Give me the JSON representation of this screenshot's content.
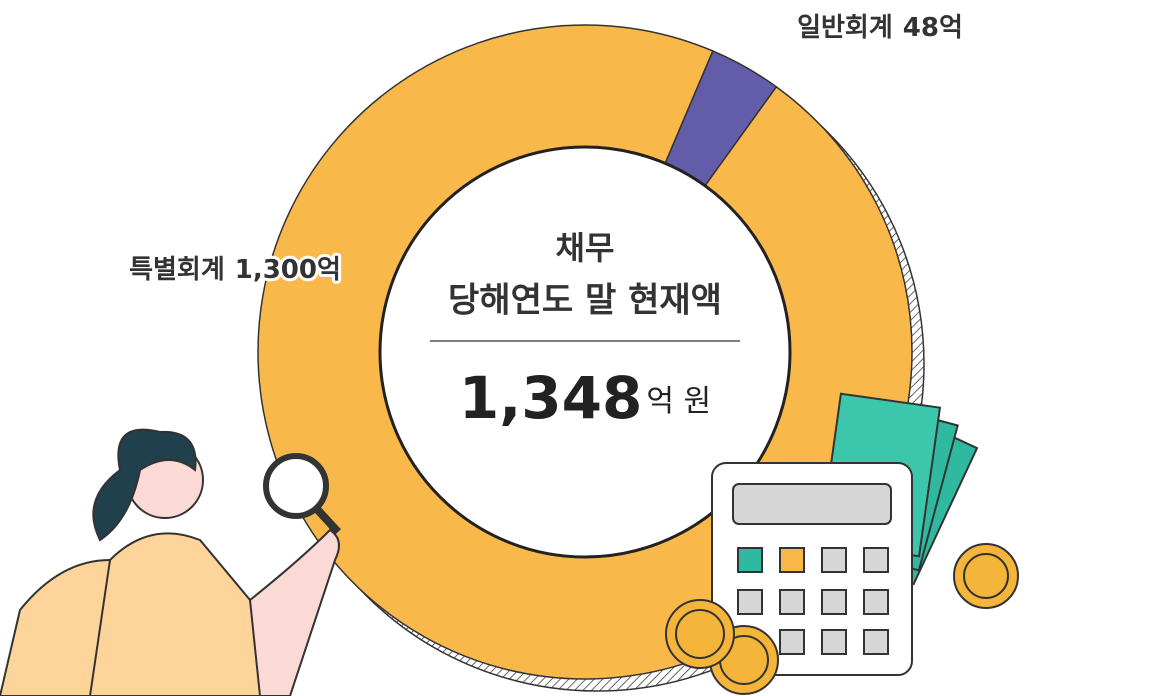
{
  "chart_data": {
    "type": "pie",
    "donut": true,
    "categories": [
      "일반회계",
      "특별회계"
    ],
    "values": [
      48,
      1300
    ],
    "value_labels": [
      "48억",
      "1,300억"
    ],
    "colors": [
      "#635ca8",
      "#f9b84a"
    ],
    "center_title": "채무",
    "center_subtitle": "당해연도 말 현재액",
    "center_total": "1,348",
    "center_unit": "억 원"
  }
}
